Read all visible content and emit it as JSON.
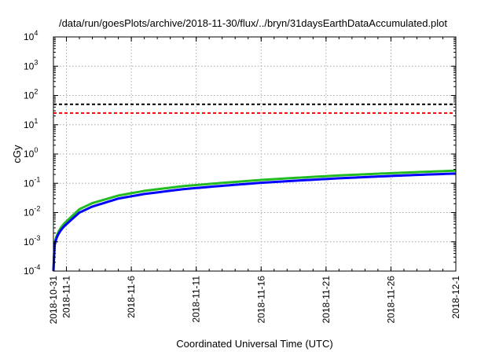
{
  "chart_data": {
    "type": "line",
    "title": "/data/run/goesPlots/archive/2018-11-30/flux/../bryn/31daysEarthDataAccumulated.plot",
    "xlabel": "Coordinated Universal Time (UTC)",
    "ylabel": "cGy",
    "yscale": "log",
    "ylim": [
      0.0001,
      10000
    ],
    "xlim": [
      "2018-10-31",
      "2018-12-01"
    ],
    "grid": true,
    "y_ticks": [
      {
        "base": "10",
        "exp": "-4",
        "value": 0.0001
      },
      {
        "base": "10",
        "exp": "-3",
        "value": 0.001
      },
      {
        "base": "10",
        "exp": "-2",
        "value": 0.01
      },
      {
        "base": "10",
        "exp": "-1",
        "value": 0.1
      },
      {
        "base": "10",
        "exp": "0",
        "value": 1
      },
      {
        "base": "10",
        "exp": "1",
        "value": 10
      },
      {
        "base": "10",
        "exp": "2",
        "value": 100
      },
      {
        "base": "10",
        "exp": "3",
        "value": 1000
      },
      {
        "base": "10",
        "exp": "4",
        "value": 10000
      }
    ],
    "x_ticks": [
      "2018-10-31",
      "2018-11-1",
      "2018-11-6",
      "2018-11-11",
      "2018-11-16",
      "2018-11-21",
      "2018-11-26",
      "2018-12-1"
    ],
    "reference_lines": [
      {
        "value": 50,
        "color": "#000000",
        "style": "dashed"
      },
      {
        "value": 25,
        "color": "#ff0000",
        "style": "dashed"
      }
    ],
    "series": [
      {
        "color": "#22bb22",
        "x": [
          "2018-10-31",
          "2018-11-01",
          "2018-11-02",
          "2018-11-03",
          "2018-11-05",
          "2018-11-07",
          "2018-11-10",
          "2018-11-13",
          "2018-11-16",
          "2018-11-19",
          "2018-11-22",
          "2018-11-25",
          "2018-11-28",
          "2018-12-01"
        ],
        "y": [
          0.0001,
          0.005,
          0.013,
          0.021,
          0.038,
          0.055,
          0.08,
          0.103,
          0.13,
          0.156,
          0.185,
          0.212,
          0.24,
          0.27
        ]
      },
      {
        "color": "#0000ff",
        "x": [
          "2018-10-31",
          "2018-11-01",
          "2018-11-02",
          "2018-11-03",
          "2018-11-05",
          "2018-11-07",
          "2018-11-10",
          "2018-11-13",
          "2018-11-16",
          "2018-11-19",
          "2018-11-22",
          "2018-11-25",
          "2018-11-28",
          "2018-12-01"
        ],
        "y": [
          0.0001,
          0.004,
          0.01,
          0.016,
          0.03,
          0.043,
          0.063,
          0.082,
          0.104,
          0.125,
          0.148,
          0.17,
          0.193,
          0.215
        ]
      }
    ]
  }
}
